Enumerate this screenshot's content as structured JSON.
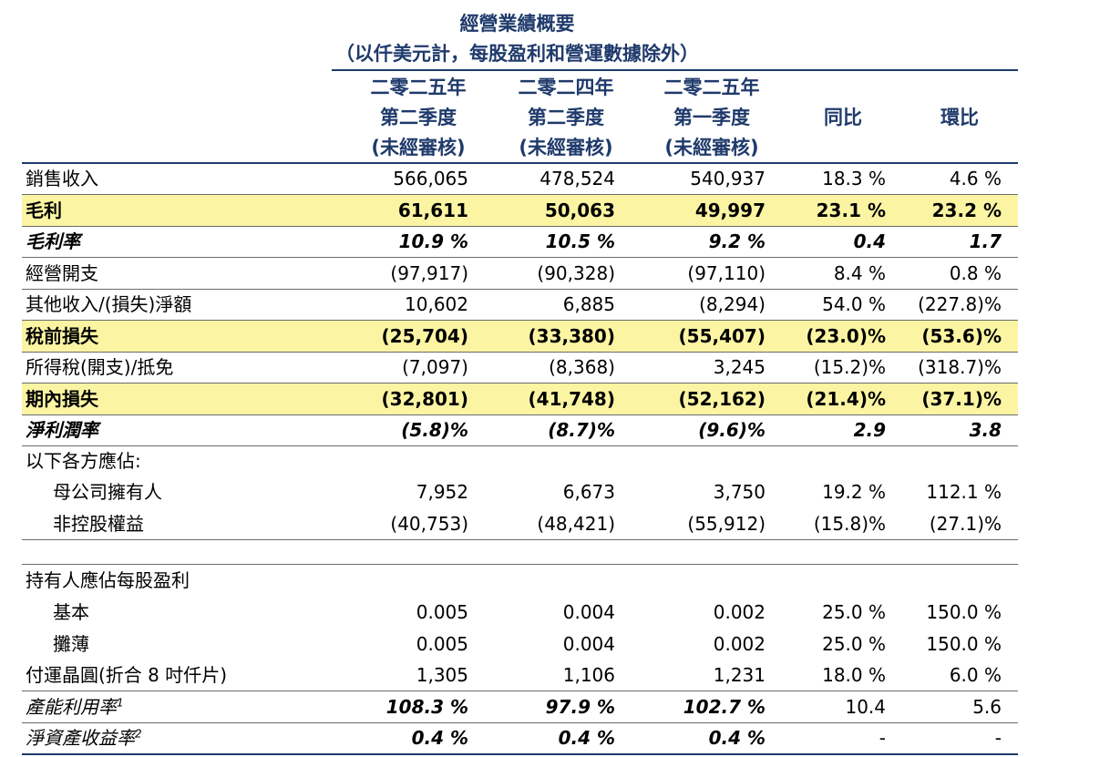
{
  "title": {
    "line1": "經營業績概要",
    "line2": "（以仟美元計，每股盈利和營運數據除外）"
  },
  "columns": [
    {
      "line1": "二零二五年",
      "line2": "第二季度",
      "line3": "(未經審核)"
    },
    {
      "line1": "二零二四年",
      "line2": "第二季度",
      "line3": "(未經審核)"
    },
    {
      "line1": "二零二五年",
      "line2": "第一季度",
      "line3": "(未經審核)"
    },
    {
      "line1": "同比"
    },
    {
      "line1": "環比"
    }
  ],
  "rows": [
    {
      "label": "銷售收入",
      "v1": "566,065",
      "v2": "478,524",
      "v3": "540,937",
      "v4": "18.3 %",
      "v5": "4.6 %"
    },
    {
      "label": "毛利",
      "v1": "61,611",
      "v2": "50,063",
      "v3": "49,997",
      "v4": "23.1 %",
      "v5": "23.2 %"
    },
    {
      "label": "毛利率",
      "v1": "10.9 %",
      "v2": "10.5 %",
      "v3": "9.2 %",
      "v4": "0.4",
      "v5": "1.7"
    },
    {
      "label": "經營開支",
      "v1": "(97,917)",
      "v2": "(90,328)",
      "v3": "(97,110)",
      "v4": "8.4 %",
      "v5": "0.8 %"
    },
    {
      "label": "其他收入/(損失)淨額",
      "v1": "10,602",
      "v2": "6,885",
      "v3": "(8,294)",
      "v4": "54.0 %",
      "v5": "(227.8)%"
    },
    {
      "label": "稅前損失",
      "v1": "(25,704)",
      "v2": "(33,380)",
      "v3": "(55,407)",
      "v4": "(23.0)%",
      "v5": "(53.6)%"
    },
    {
      "label": "所得稅(開支)/抵免",
      "v1": "(7,097)",
      "v2": "(8,368)",
      "v3": "3,245",
      "v4": "(15.2)%",
      "v5": "(318.7)%"
    },
    {
      "label": "期內損失",
      "v1": "(32,801)",
      "v2": "(41,748)",
      "v3": "(52,162)",
      "v4": "(21.4)%",
      "v5": "(37.1)%"
    },
    {
      "label": "淨利潤率",
      "v1": "(5.8)%",
      "v2": "(8.7)%",
      "v3": "(9.6)%",
      "v4": "2.9",
      "v5": "3.8"
    },
    {
      "label": "以下各方應佔:"
    },
    {
      "label": "母公司擁有人",
      "v1": "7,952",
      "v2": "6,673",
      "v3": "3,750",
      "v4": "19.2 %",
      "v5": "112.1 %"
    },
    {
      "label": "非控股權益",
      "v1": "(40,753)",
      "v2": "(48,421)",
      "v3": "(55,912)",
      "v4": "(15.8)%",
      "v5": "(27.1)%"
    },
    {
      "label": "持有人應佔每股盈利"
    },
    {
      "label": "基本",
      "v1": "0.005",
      "v2": "0.004",
      "v3": "0.002",
      "v4": "25.0 %",
      "v5": "150.0 %"
    },
    {
      "label": "攤薄",
      "v1": "0.005",
      "v2": "0.004",
      "v3": "0.002",
      "v4": "25.0 %",
      "v5": "150.0 %"
    },
    {
      "label": "付運晶圓(折合 8 吋仟片)",
      "v1": "1,305",
      "v2": "1,106",
      "v3": "1,231",
      "v4": "18.0 %",
      "v5": "6.0 %"
    },
    {
      "label": "產能利用率",
      "sup": "1",
      "v1": "108.3 %",
      "v2": "97.9 %",
      "v3": "102.7 %",
      "v4": "10.4",
      "v5": "5.6"
    },
    {
      "label": "淨資產收益率",
      "sup": "2",
      "v1": "0.4 %",
      "v2": "0.4 %",
      "v3": "0.4 %",
      "v4": "-",
      "v5": "-"
    }
  ],
  "colors": {
    "header_text": "#1f3a6b",
    "highlight": "#fbf5a3"
  }
}
